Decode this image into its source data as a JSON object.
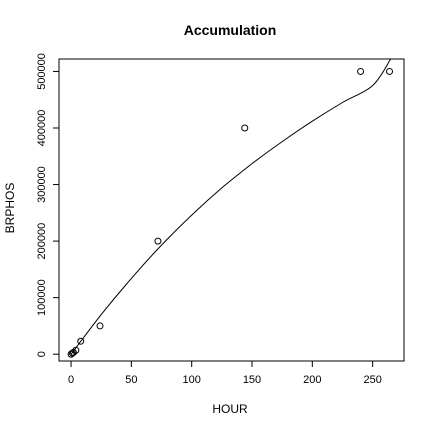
{
  "chart_data": {
    "type": "scatter",
    "title": "Accumulation",
    "xlabel": "HOUR",
    "ylabel": "BRPHOS",
    "xlim": [
      -10,
      276
    ],
    "ylim": [
      -12000,
      522000
    ],
    "x_ticks": [
      0,
      50,
      100,
      150,
      200,
      250
    ],
    "y_ticks": [
      0,
      100000,
      200000,
      300000,
      400000,
      500000
    ],
    "grid": false,
    "legend": "none",
    "series": [
      {
        "points": [
          {
            "x": 0,
            "y": 0
          },
          {
            "x": 1,
            "y": 2000
          },
          {
            "x": 2,
            "y": 3000
          },
          {
            "x": 4,
            "y": 7000
          },
          {
            "x": 8,
            "y": 23000
          },
          {
            "x": 24,
            "y": 50000
          },
          {
            "x": 72,
            "y": 200000
          },
          {
            "x": 144,
            "y": 400000
          },
          {
            "x": 240,
            "y": 500000
          },
          {
            "x": 264,
            "y": 500000
          }
        ]
      }
    ],
    "fit_line": {
      "x": [
        0,
        25,
        50,
        75,
        100,
        125,
        150,
        175,
        200,
        225,
        250,
        265
      ],
      "y": [
        0,
        70000,
        134000,
        193000,
        246000,
        294000,
        337000,
        376000,
        412000,
        445000,
        475000,
        522000
      ]
    }
  }
}
